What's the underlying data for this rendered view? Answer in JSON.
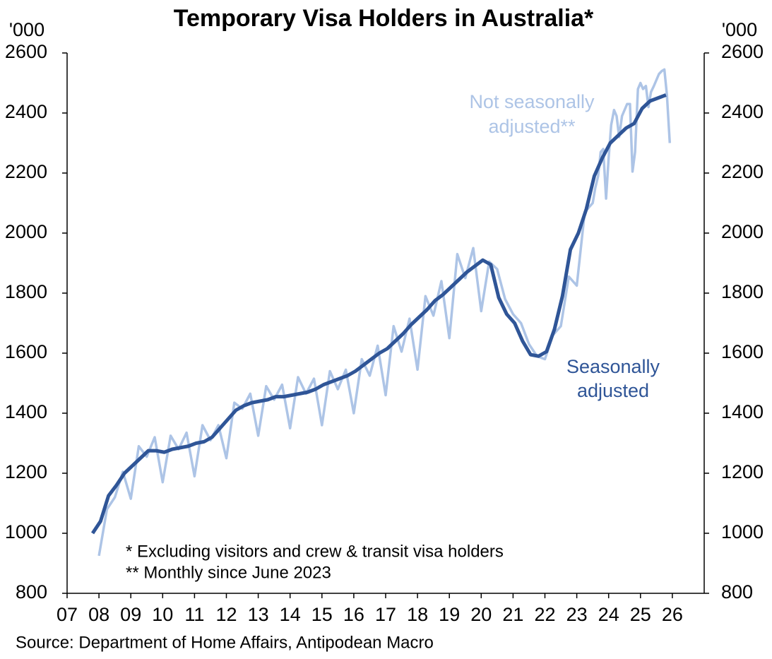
{
  "chart_data": {
    "type": "line",
    "title": "Temporary Visa Holders in Australia*",
    "y_unit_label": "'000",
    "y2_unit_label": "'000",
    "annotations": {
      "not_seasonally_adjusted": [
        "Not seasonally",
        "adjusted**"
      ],
      "seasonally_adjusted": [
        "Seasonally",
        "adjusted"
      ]
    },
    "footnotes": [
      "* Excluding visitors and crew & transit visa holders",
      "** Monthly since June 2023"
    ],
    "source": "Source: Department of Home Affairs, Antipodean Macro",
    "xlim": [
      2007,
      2027
    ],
    "xticks": [
      {
        "value": 2007,
        "label": "07"
      },
      {
        "value": 2008,
        "label": "08"
      },
      {
        "value": 2009,
        "label": "09"
      },
      {
        "value": 2010,
        "label": "10"
      },
      {
        "value": 2011,
        "label": "11"
      },
      {
        "value": 2012,
        "label": "12"
      },
      {
        "value": 2013,
        "label": "13"
      },
      {
        "value": 2014,
        "label": "14"
      },
      {
        "value": 2015,
        "label": "15"
      },
      {
        "value": 2016,
        "label": "16"
      },
      {
        "value": 2017,
        "label": "17"
      },
      {
        "value": 2018,
        "label": "18"
      },
      {
        "value": 2019,
        "label": "19"
      },
      {
        "value": 2020,
        "label": "20"
      },
      {
        "value": 2021,
        "label": "21"
      },
      {
        "value": 2022,
        "label": "22"
      },
      {
        "value": 2023,
        "label": "23"
      },
      {
        "value": 2024,
        "label": "24"
      },
      {
        "value": 2025,
        "label": "25"
      },
      {
        "value": 2026,
        "label": "26"
      }
    ],
    "ylim": [
      800,
      2600
    ],
    "yticks": [
      800,
      1000,
      1200,
      1400,
      1600,
      1800,
      2000,
      2200,
      2400,
      2600
    ],
    "y2lim": [
      800,
      2600
    ],
    "y2ticks": [
      800,
      1000,
      1200,
      1400,
      1600,
      1800,
      2000,
      2200,
      2400,
      2600
    ],
    "series": [
      {
        "name": "Not seasonally adjusted",
        "color": "#adc4e6",
        "x": [
          2008.0,
          2008.25,
          2008.5,
          2008.75,
          2009.0,
          2009.25,
          2009.5,
          2009.75,
          2010.0,
          2010.25,
          2010.5,
          2010.75,
          2011.0,
          2011.25,
          2011.5,
          2011.75,
          2012.0,
          2012.25,
          2012.5,
          2012.75,
          2013.0,
          2013.25,
          2013.5,
          2013.75,
          2014.0,
          2014.25,
          2014.5,
          2014.75,
          2015.0,
          2015.25,
          2015.5,
          2015.75,
          2016.0,
          2016.25,
          2016.5,
          2016.75,
          2017.0,
          2017.25,
          2017.5,
          2017.75,
          2018.0,
          2018.25,
          2018.5,
          2018.75,
          2019.0,
          2019.25,
          2019.5,
          2019.75,
          2020.0,
          2020.25,
          2020.5,
          2020.75,
          2021.0,
          2021.25,
          2021.5,
          2021.75,
          2022.0,
          2022.25,
          2022.5,
          2022.75,
          2023.0,
          2023.25,
          2023.5,
          2023.58,
          2023.67,
          2023.75,
          2023.83,
          2023.92,
          2024.0,
          2024.08,
          2024.17,
          2024.25,
          2024.33,
          2024.42,
          2024.5,
          2024.58,
          2024.67,
          2024.75,
          2024.83,
          2024.92,
          2025.0,
          2025.08,
          2025.17,
          2025.25,
          2025.33,
          2025.42,
          2025.5,
          2025.58,
          2025.67,
          2025.75,
          2025.83,
          2025.92
        ],
        "values": [
          925,
          1080,
          1120,
          1205,
          1115,
          1290,
          1255,
          1320,
          1170,
          1325,
          1280,
          1335,
          1190,
          1360,
          1310,
          1360,
          1250,
          1435,
          1415,
          1465,
          1325,
          1490,
          1445,
          1495,
          1350,
          1520,
          1465,
          1515,
          1360,
          1540,
          1480,
          1545,
          1400,
          1580,
          1525,
          1625,
          1460,
          1690,
          1605,
          1715,
          1545,
          1790,
          1725,
          1840,
          1650,
          1930,
          1850,
          1950,
          1740,
          1905,
          1880,
          1780,
          1730,
          1700,
          1630,
          1590,
          1580,
          1660,
          1690,
          1855,
          1825,
          2070,
          2100,
          2150,
          2190,
          2270,
          2280,
          2115,
          2250,
          2360,
          2410,
          2390,
          2320,
          2390,
          2410,
          2430,
          2430,
          2205,
          2270,
          2480,
          2500,
          2480,
          2490,
          2420,
          2470,
          2490,
          2510,
          2530,
          2540,
          2545,
          2460,
          2300
        ]
      },
      {
        "name": "Seasonally adjusted",
        "color": "#2f5597",
        "x": [
          2007.8,
          2008.05,
          2008.3,
          2008.55,
          2008.8,
          2009.05,
          2009.3,
          2009.55,
          2009.8,
          2010.05,
          2010.3,
          2010.55,
          2010.8,
          2011.05,
          2011.3,
          2011.55,
          2011.8,
          2012.05,
          2012.3,
          2012.55,
          2012.8,
          2013.05,
          2013.3,
          2013.55,
          2013.8,
          2014.05,
          2014.3,
          2014.55,
          2014.8,
          2015.05,
          2015.3,
          2015.55,
          2015.8,
          2016.05,
          2016.3,
          2016.55,
          2016.8,
          2017.05,
          2017.3,
          2017.55,
          2017.8,
          2018.05,
          2018.3,
          2018.55,
          2018.8,
          2019.05,
          2019.3,
          2019.55,
          2019.8,
          2020.05,
          2020.3,
          2020.55,
          2020.8,
          2021.05,
          2021.3,
          2021.55,
          2021.8,
          2022.05,
          2022.3,
          2022.55,
          2022.8,
          2023.05,
          2023.3,
          2023.55,
          2023.8,
          2024.05,
          2024.3,
          2024.55,
          2024.8,
          2025.05,
          2025.3,
          2025.55,
          2025.8
        ],
        "values": [
          1000,
          1040,
          1125,
          1160,
          1200,
          1225,
          1250,
          1275,
          1275,
          1270,
          1280,
          1285,
          1290,
          1300,
          1305,
          1320,
          1350,
          1380,
          1410,
          1425,
          1435,
          1440,
          1445,
          1455,
          1455,
          1460,
          1465,
          1470,
          1480,
          1495,
          1505,
          1515,
          1525,
          1540,
          1560,
          1580,
          1600,
          1615,
          1640,
          1665,
          1695,
          1720,
          1745,
          1775,
          1795,
          1820,
          1845,
          1870,
          1890,
          1910,
          1895,
          1785,
          1730,
          1700,
          1640,
          1595,
          1590,
          1605,
          1680,
          1790,
          1945,
          2000,
          2080,
          2190,
          2250,
          2300,
          2325,
          2350,
          2365,
          2415,
          2440,
          2450,
          2460
        ]
      }
    ]
  }
}
